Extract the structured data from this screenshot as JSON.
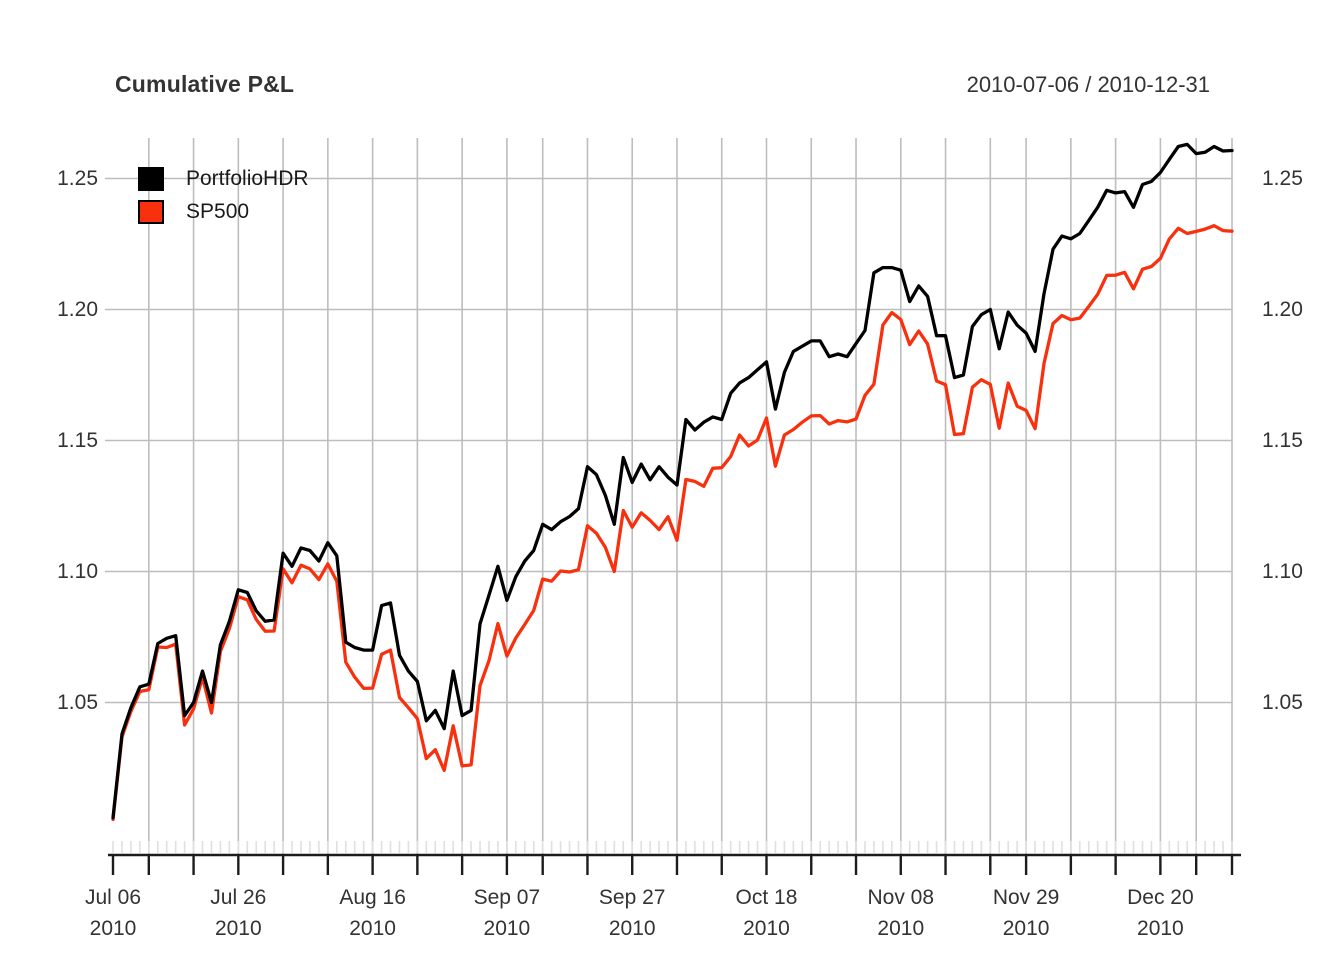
{
  "header": {
    "title": "Cumulative P&L",
    "date_range": "2010-07-06 / 2010-12-31"
  },
  "legend": {
    "items": [
      {
        "label": "PortfolioHDR",
        "color": "#000000"
      },
      {
        "label": "SP500",
        "color": "#F8300E"
      }
    ]
  },
  "colors": {
    "background": "#FFFFFF",
    "grid": "#BDBDBD",
    "axis": "#1C1C1C",
    "daily_tick": "#E0E0E0",
    "text": "#333333",
    "portfolio_line": "#000000",
    "sp500_line": "#F8300E"
  },
  "y_axis": {
    "tick_labels": [
      "1.05",
      "1.10",
      "1.15",
      "1.20",
      "1.25"
    ],
    "tick_values": [
      1.05,
      1.1,
      1.15,
      1.2,
      1.25
    ],
    "sides": [
      "left",
      "right"
    ]
  },
  "x_axis": {
    "major_labels": [
      {
        "line1": "Jul 06",
        "line2": "2010",
        "date": "2010-07-06"
      },
      {
        "line1": "Jul 26",
        "line2": "2010",
        "date": "2010-07-26"
      },
      {
        "line1": "Aug 16",
        "line2": "2010",
        "date": "2010-08-16"
      },
      {
        "line1": "Sep 07",
        "line2": "2010",
        "date": "2010-09-07"
      },
      {
        "line1": "Sep 27",
        "line2": "2010",
        "date": "2010-09-27"
      },
      {
        "line1": "Oct 18",
        "line2": "2010",
        "date": "2010-10-18"
      },
      {
        "line1": "Nov 08",
        "line2": "2010",
        "date": "2010-11-08"
      },
      {
        "line1": "Nov 29",
        "line2": "2010",
        "date": "2010-11-29"
      },
      {
        "line1": "Dec 20",
        "line2": "2010",
        "date": "2010-12-20"
      }
    ],
    "weekly_ticks": [
      "2010-07-06",
      "2010-07-12",
      "2010-07-19",
      "2010-07-26",
      "2010-08-02",
      "2010-08-09",
      "2010-08-16",
      "2010-08-23",
      "2010-08-30",
      "2010-09-07",
      "2010-09-13",
      "2010-09-20",
      "2010-09-27",
      "2010-10-04",
      "2010-10-11",
      "2010-10-18",
      "2010-10-25",
      "2010-11-01",
      "2010-11-08",
      "2010-11-15",
      "2010-11-22",
      "2010-11-29",
      "2010-12-06",
      "2010-12-13",
      "2010-12-20",
      "2010-12-27",
      "2010-12-31"
    ],
    "gridline_dates": [
      "2010-07-12",
      "2010-07-19",
      "2010-07-26",
      "2010-08-02",
      "2010-08-09",
      "2010-08-16",
      "2010-08-23",
      "2010-08-30",
      "2010-09-07",
      "2010-09-13",
      "2010-09-20",
      "2010-09-27",
      "2010-10-04",
      "2010-10-11",
      "2010-10-18",
      "2010-10-25",
      "2010-11-01",
      "2010-11-08",
      "2010-11-15",
      "2010-11-22",
      "2010-11-29",
      "2010-12-06",
      "2010-12-13",
      "2010-12-20",
      "2010-12-27",
      "2010-12-31"
    ]
  },
  "chart_data": {
    "type": "line",
    "title": "Cumulative P&L",
    "subtitle": "2010-07-06 / 2010-12-31",
    "xlabel": "",
    "ylabel": "",
    "ylim": [
      0.992,
      1.266
    ],
    "y_ticks": [
      1.05,
      1.1,
      1.15,
      1.2,
      1.25
    ],
    "grid": true,
    "legend_position": "top-left",
    "x": [
      "2010-07-06",
      "2010-07-07",
      "2010-07-08",
      "2010-07-09",
      "2010-07-12",
      "2010-07-13",
      "2010-07-14",
      "2010-07-15",
      "2010-07-16",
      "2010-07-19",
      "2010-07-20",
      "2010-07-21",
      "2010-07-22",
      "2010-07-23",
      "2010-07-26",
      "2010-07-27",
      "2010-07-28",
      "2010-07-29",
      "2010-07-30",
      "2010-08-02",
      "2010-08-03",
      "2010-08-04",
      "2010-08-05",
      "2010-08-06",
      "2010-08-09",
      "2010-08-10",
      "2010-08-11",
      "2010-08-12",
      "2010-08-13",
      "2010-08-16",
      "2010-08-17",
      "2010-08-18",
      "2010-08-19",
      "2010-08-20",
      "2010-08-23",
      "2010-08-24",
      "2010-08-25",
      "2010-08-26",
      "2010-08-27",
      "2010-08-30",
      "2010-08-31",
      "2010-09-01",
      "2010-09-02",
      "2010-09-03",
      "2010-09-07",
      "2010-09-08",
      "2010-09-09",
      "2010-09-10",
      "2010-09-13",
      "2010-09-14",
      "2010-09-15",
      "2010-09-16",
      "2010-09-17",
      "2010-09-20",
      "2010-09-21",
      "2010-09-22",
      "2010-09-23",
      "2010-09-24",
      "2010-09-27",
      "2010-09-28",
      "2010-09-29",
      "2010-09-30",
      "2010-10-01",
      "2010-10-04",
      "2010-10-05",
      "2010-10-06",
      "2010-10-07",
      "2010-10-08",
      "2010-10-11",
      "2010-10-12",
      "2010-10-13",
      "2010-10-14",
      "2010-10-15",
      "2010-10-18",
      "2010-10-19",
      "2010-10-20",
      "2010-10-21",
      "2010-10-22",
      "2010-10-25",
      "2010-10-26",
      "2010-10-27",
      "2010-10-28",
      "2010-10-29",
      "2010-11-01",
      "2010-11-02",
      "2010-11-03",
      "2010-11-04",
      "2010-11-05",
      "2010-11-08",
      "2010-11-09",
      "2010-11-10",
      "2010-11-11",
      "2010-11-12",
      "2010-11-15",
      "2010-11-16",
      "2010-11-17",
      "2010-11-18",
      "2010-11-19",
      "2010-11-22",
      "2010-11-23",
      "2010-11-24",
      "2010-11-26",
      "2010-11-29",
      "2010-11-30",
      "2010-12-01",
      "2010-12-02",
      "2010-12-03",
      "2010-12-06",
      "2010-12-07",
      "2010-12-08",
      "2010-12-09",
      "2010-12-10",
      "2010-12-13",
      "2010-12-14",
      "2010-12-15",
      "2010-12-16",
      "2010-12-17",
      "2010-12-20",
      "2010-12-21",
      "2010-12-22",
      "2010-12-23",
      "2010-12-27",
      "2010-12-28",
      "2010-12-29",
      "2010-12-30",
      "2010-12-31"
    ],
    "series": [
      {
        "name": "PortfolioHDR",
        "color": "#000000",
        "values": [
          1.006,
          1.038,
          1.048,
          1.056,
          1.057,
          1.0725,
          1.0745,
          1.0755,
          1.045,
          1.05,
          1.062,
          1.05,
          1.072,
          1.081,
          1.093,
          1.092,
          1.085,
          1.081,
          1.0815,
          1.107,
          1.102,
          1.109,
          1.108,
          1.104,
          1.111,
          1.106,
          1.073,
          1.071,
          1.07,
          1.07,
          1.087,
          1.088,
          1.068,
          1.062,
          1.058,
          1.043,
          1.047,
          1.04,
          1.062,
          1.045,
          1.047,
          1.08,
          1.091,
          1.102,
          1.089,
          1.098,
          1.104,
          1.108,
          1.118,
          1.116,
          1.119,
          1.121,
          1.124,
          1.14,
          1.137,
          1.129,
          1.118,
          1.1435,
          1.134,
          1.141,
          1.135,
          1.14,
          1.136,
          1.133,
          1.158,
          1.154,
          1.157,
          1.159,
          1.158,
          1.168,
          1.172,
          1.174,
          1.177,
          1.18,
          1.162,
          1.176,
          1.184,
          1.186,
          1.188,
          1.188,
          1.182,
          1.183,
          1.182,
          1.187,
          1.192,
          1.214,
          1.216,
          1.216,
          1.215,
          1.203,
          1.209,
          1.205,
          1.19,
          1.19,
          1.174,
          1.175,
          1.1935,
          1.198,
          1.2,
          1.185,
          1.199,
          1.194,
          1.191,
          1.184,
          1.206,
          1.223,
          1.228,
          1.227,
          1.229,
          1.234,
          1.239,
          1.2455,
          1.2445,
          1.245,
          1.239,
          1.2477,
          1.2489,
          1.2523,
          1.2573,
          1.2622,
          1.263,
          1.2595,
          1.26,
          1.2622,
          1.2605,
          1.2607
        ]
      },
      {
        "name": "SP500",
        "color": "#F8300E",
        "values": [
          1.0054,
          1.0369,
          1.0466,
          1.0542,
          1.0549,
          1.0712,
          1.071,
          1.0723,
          1.0414,
          1.0476,
          1.0596,
          1.046,
          1.0695,
          1.0783,
          1.0904,
          1.0892,
          1.0817,
          1.0772,
          1.0773,
          1.101,
          1.0957,
          1.1024,
          1.101,
          1.0969,
          1.1029,
          1.0963,
          1.0654,
          1.0597,
          1.0554,
          1.0555,
          1.0684,
          1.07,
          1.0519,
          1.048,
          1.0438,
          1.0286,
          1.032,
          1.0241,
          1.0411,
          1.0258,
          1.0262,
          1.0564,
          1.066,
          1.0801,
          1.0677,
          1.0746,
          1.0798,
          1.0851,
          1.0971,
          1.0963,
          1.1002,
          1.0998,
          1.1007,
          1.1175,
          1.1146,
          1.1092,
          1.1,
          1.1233,
          1.1169,
          1.1224,
          1.1195,
          1.116,
          1.1209,
          1.1119,
          1.1351,
          1.1344,
          1.1325,
          1.1394,
          1.1396,
          1.1439,
          1.1521,
          1.1479,
          1.1502,
          1.1586,
          1.1402,
          1.1521,
          1.1542,
          1.157,
          1.1594,
          1.1595,
          1.1563,
          1.1576,
          1.1571,
          1.1582,
          1.1672,
          1.1715,
          1.1941,
          1.1988,
          1.1962,
          1.1866,
          1.1918,
          1.1868,
          1.1727,
          1.1713,
          1.1523,
          1.1526,
          1.1703,
          1.1732,
          1.1714,
          1.1547,
          1.1719,
          1.1631,
          1.1615,
          1.1545,
          1.1794,
          1.1946,
          1.1977,
          1.1961,
          1.1967,
          1.2012,
          1.2058,
          1.213,
          1.2131,
          1.2142,
          1.2079,
          1.2154,
          1.2164,
          1.2195,
          1.2269,
          1.231,
          1.229,
          1.2298,
          1.2307,
          1.232,
          1.2301,
          1.2299
        ]
      }
    ]
  }
}
